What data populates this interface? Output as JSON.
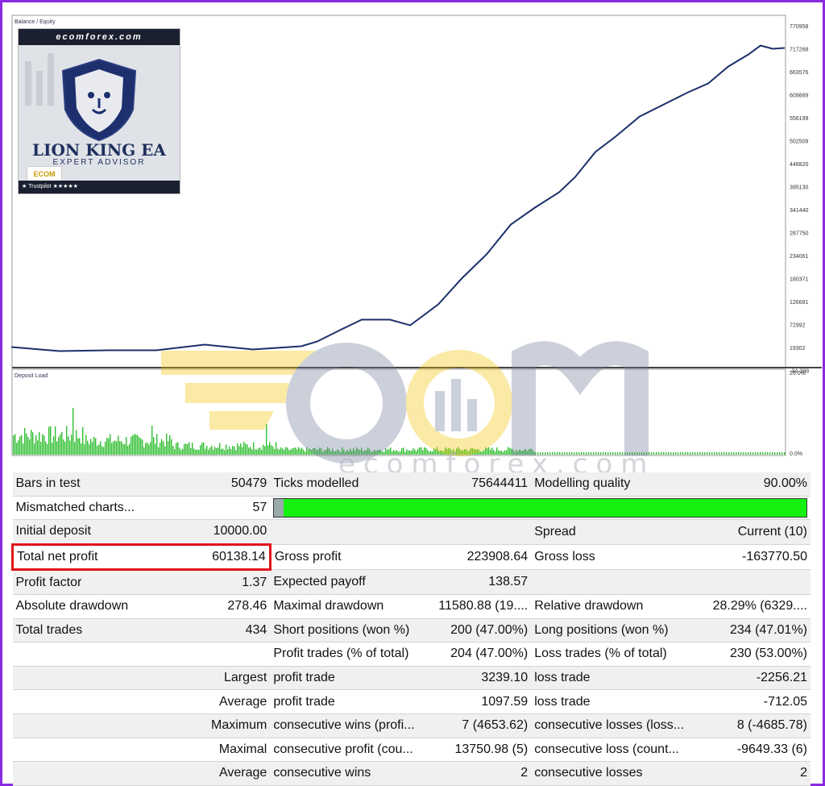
{
  "chart": {
    "balance_legend": "Balance / Equity",
    "deposit_legend": "Deposit Load",
    "y_ticks": [
      "770958",
      "717268",
      "663576",
      "609889",
      "556199",
      "502509",
      "448820",
      "395130",
      "341440",
      "287750",
      "234061",
      "180371",
      "126681",
      "72992",
      "19302",
      "-34-388"
    ],
    "load_top": "25.0%",
    "load_bottom": "0.0%",
    "line_color": "#1c2f6b",
    "bar_color": "#2fbf2f"
  },
  "logo": {
    "banner": "ecomforex.com",
    "title": "LION KING EA",
    "subtitle": "EXPERT ADVISOR",
    "badge": "ECOM",
    "trustpilot": "★ Trustpilot ★★★★★"
  },
  "watermark": {
    "text": "ecomforex.com"
  },
  "report": {
    "rows": [
      [
        {
          "t": "Bars in test"
        },
        {
          "t": "50479",
          "r": 1
        },
        {
          "t": "Ticks modelled"
        },
        {
          "t": "75644411",
          "r": 1
        },
        {
          "t": "Modelling quality"
        },
        {
          "t": "90.00%",
          "r": 1
        }
      ],
      [
        {
          "t": "Mismatched charts..."
        },
        {
          "t": "57",
          "r": 1
        },
        {
          "bar": 1
        },
        {
          "t": ""
        },
        {
          "t": ""
        },
        {
          "t": ""
        }
      ],
      [
        {
          "t": "Initial deposit"
        },
        {
          "t": "10000.00",
          "r": 1
        },
        {
          "t": ""
        },
        {
          "t": ""
        },
        {
          "t": "Spread"
        },
        {
          "t": "Current (10)",
          "r": 1
        }
      ],
      [
        {
          "t": "Total net profit",
          "hl": 1
        },
        {
          "t": "60138.14",
          "r": 1,
          "hl": 1
        },
        {
          "t": "Gross profit"
        },
        {
          "t": "223908.64",
          "r": 1
        },
        {
          "t": "Gross loss"
        },
        {
          "t": "-163770.50",
          "r": 1
        }
      ],
      [
        {
          "t": "Profit factor"
        },
        {
          "t": "1.37",
          "r": 1
        },
        {
          "t": "Expected payoff"
        },
        {
          "t": "138.57",
          "r": 1
        },
        {
          "t": ""
        },
        {
          "t": ""
        }
      ],
      [
        {
          "t": "Absolute drawdown"
        },
        {
          "t": "278.46",
          "r": 1
        },
        {
          "t": "Maximal drawdown"
        },
        {
          "t": "11580.88 (19....",
          "r": 1
        },
        {
          "t": "Relative drawdown"
        },
        {
          "t": "28.29% (6329....",
          "r": 1
        }
      ],
      [
        {
          "t": "Total trades"
        },
        {
          "t": "434",
          "r": 1
        },
        {
          "t": "Short positions (won %)"
        },
        {
          "t": "200 (47.00%)",
          "r": 1
        },
        {
          "t": "Long positions (won %)"
        },
        {
          "t": "234 (47.01%)",
          "r": 1
        }
      ],
      [
        {
          "t": ""
        },
        {
          "t": ""
        },
        {
          "t": "Profit trades (% of total)"
        },
        {
          "t": "204 (47.00%)",
          "r": 1
        },
        {
          "t": "Loss trades (% of total)"
        },
        {
          "t": "230 (53.00%)",
          "r": 1
        }
      ],
      [
        {
          "t": ""
        },
        {
          "t": "Largest",
          "r": 1
        },
        {
          "t": "profit trade"
        },
        {
          "t": "3239.10",
          "r": 1
        },
        {
          "t": "loss trade"
        },
        {
          "t": "-2256.21",
          "r": 1
        }
      ],
      [
        {
          "t": ""
        },
        {
          "t": "Average",
          "r": 1
        },
        {
          "t": "profit trade"
        },
        {
          "t": "1097.59",
          "r": 1
        },
        {
          "t": "loss trade"
        },
        {
          "t": "-712.05",
          "r": 1
        }
      ],
      [
        {
          "t": ""
        },
        {
          "t": "Maximum",
          "r": 1
        },
        {
          "t": "consecutive wins (profi..."
        },
        {
          "t": "7 (4653.62)",
          "r": 1
        },
        {
          "t": "consecutive losses (loss..."
        },
        {
          "t": "8 (-4685.78)",
          "r": 1
        }
      ],
      [
        {
          "t": ""
        },
        {
          "t": "Maximal",
          "r": 1
        },
        {
          "t": "consecutive profit (cou..."
        },
        {
          "t": "13750.98 (5)",
          "r": 1
        },
        {
          "t": "consecutive loss (count..."
        },
        {
          "t": "-9649.33 (6)",
          "r": 1
        }
      ],
      [
        {
          "t": ""
        },
        {
          "t": "Average",
          "r": 1
        },
        {
          "t": "consecutive wins"
        },
        {
          "t": "2",
          "r": 1
        },
        {
          "t": "consecutive losses"
        },
        {
          "t": "2",
          "r": 1
        }
      ]
    ],
    "modelling_quality_fraction": 0.9
  }
}
